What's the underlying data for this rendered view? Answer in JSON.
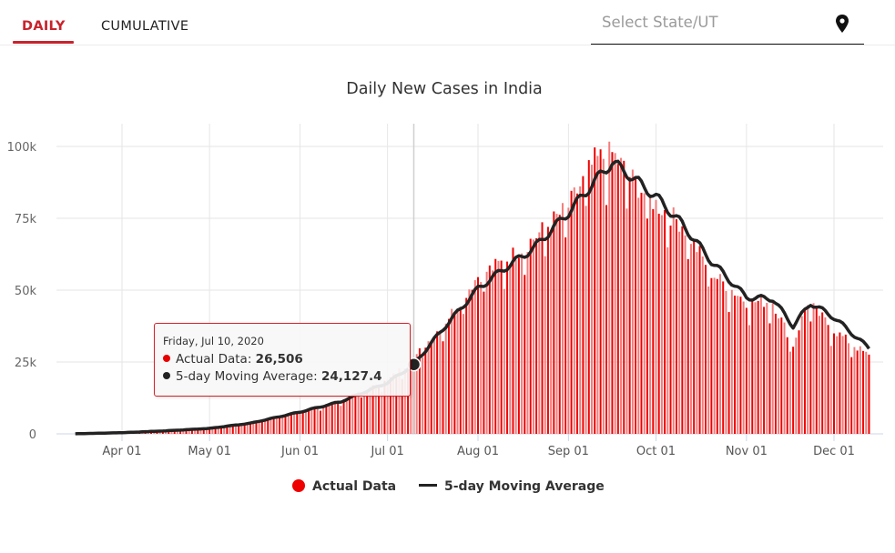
{
  "tabs": [
    {
      "label": "DAILY",
      "active": true
    },
    {
      "label": "CUMULATIVE",
      "active": false
    }
  ],
  "state_select": {
    "placeholder": "Select State/UT",
    "icon": "map-pin-icon"
  },
  "colors": {
    "accent": "#c8232c",
    "bar": "#ee0000",
    "bar_alt": "#f47b7b",
    "line": "#222222",
    "grid": "#e6e6e6"
  },
  "tooltip": {
    "date": "Friday, Jul 10, 2020",
    "actual_label": "Actual Data: ",
    "actual_value": "26,506",
    "avg_label": "5-day Moving Average: ",
    "avg_value": "24,127.4"
  },
  "chart_data": {
    "type": "bar",
    "title": "Daily New Cases in India",
    "xlabel": "",
    "ylabel": "",
    "ylim": [
      0,
      100000
    ],
    "yticks": [
      0,
      25000,
      50000,
      75000,
      100000
    ],
    "ytick_labels": [
      "0",
      "25k",
      "50k",
      "75k",
      "100k"
    ],
    "xtick_labels": [
      "Apr 01",
      "May 01",
      "Jun 01",
      "Jul 01",
      "Aug 01",
      "Sep 01",
      "Oct 01",
      "Nov 01",
      "Dec 01"
    ],
    "start_date": "2020-03-16",
    "end_date": "2020-12-13",
    "grid": true,
    "legend_position": "bottom",
    "highlight": {
      "date": "2020-07-10",
      "actual": 26506,
      "moving_average": 24127.4
    },
    "series": [
      {
        "name": "Actual Data",
        "type": "bar",
        "anchors": [
          [
            "2020-03-16",
            20
          ],
          [
            "2020-04-01",
            450
          ],
          [
            "2020-04-15",
            1100
          ],
          [
            "2020-05-01",
            2000
          ],
          [
            "2020-05-15",
            3900
          ],
          [
            "2020-06-01",
            7800
          ],
          [
            "2020-06-15",
            11500
          ],
          [
            "2020-07-01",
            18500
          ],
          [
            "2020-07-10",
            26506
          ],
          [
            "2020-07-20",
            38000
          ],
          [
            "2020-08-01",
            55000
          ],
          [
            "2020-08-10",
            60000
          ],
          [
            "2020-08-20",
            68000
          ],
          [
            "2020-09-01",
            79000
          ],
          [
            "2020-09-10",
            95000
          ],
          [
            "2020-09-16",
            97500
          ],
          [
            "2020-09-25",
            86000
          ],
          [
            "2020-10-01",
            80000
          ],
          [
            "2020-10-10",
            73000
          ],
          [
            "2020-10-20",
            56000
          ],
          [
            "2020-11-01",
            46000
          ],
          [
            "2020-11-10",
            46000
          ],
          [
            "2020-11-17",
            31000
          ],
          [
            "2020-11-22",
            46000
          ],
          [
            "2020-12-01",
            36000
          ],
          [
            "2020-12-13",
            27000
          ]
        ]
      },
      {
        "name": "5-day Moving Average",
        "type": "line",
        "anchors": [
          [
            "2020-03-16",
            30
          ],
          [
            "2020-04-01",
            400
          ],
          [
            "2020-04-15",
            1000
          ],
          [
            "2020-05-01",
            1900
          ],
          [
            "2020-05-15",
            3700
          ],
          [
            "2020-06-01",
            7600
          ],
          [
            "2020-06-15",
            11200
          ],
          [
            "2020-07-01",
            17800
          ],
          [
            "2020-07-10",
            24127.4
          ],
          [
            "2020-07-20",
            36500
          ],
          [
            "2020-08-01",
            50500
          ],
          [
            "2020-08-10",
            57500
          ],
          [
            "2020-08-20",
            64500
          ],
          [
            "2020-09-01",
            77000
          ],
          [
            "2020-09-11",
            89000
          ],
          [
            "2020-09-16",
            94500
          ],
          [
            "2020-09-22",
            90000
          ],
          [
            "2020-10-01",
            82500
          ],
          [
            "2020-10-10",
            73000
          ],
          [
            "2020-10-20",
            60000
          ],
          [
            "2020-11-01",
            47500
          ],
          [
            "2020-11-10",
            47000
          ],
          [
            "2020-11-17",
            37500
          ],
          [
            "2020-11-23",
            45500
          ],
          [
            "2020-12-01",
            40500
          ],
          [
            "2020-12-13",
            29800
          ]
        ]
      }
    ]
  }
}
